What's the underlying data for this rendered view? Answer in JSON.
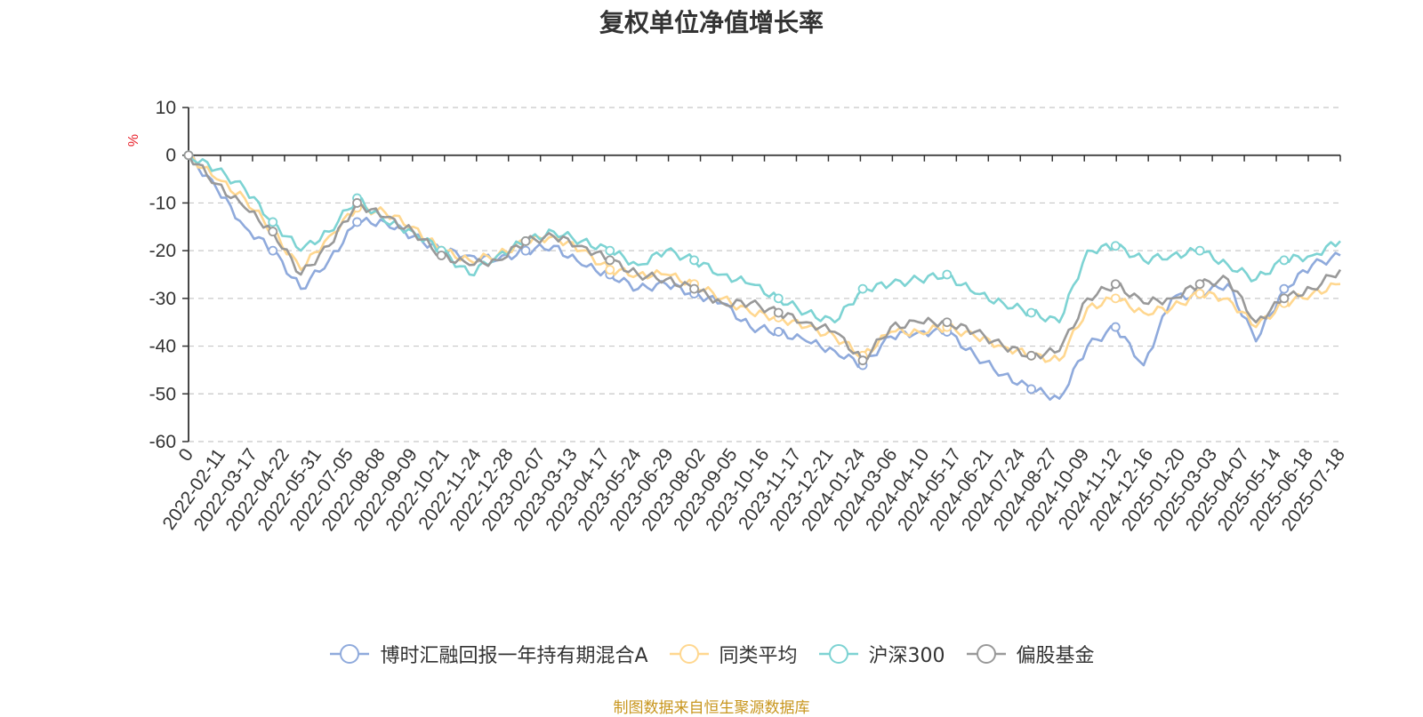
{
  "chart_data": {
    "type": "line",
    "title": "复权单位净值增长率",
    "ylabel": "%",
    "ylim": [
      -60,
      10
    ],
    "yticks": [
      10,
      0,
      -10,
      -20,
      -30,
      -40,
      -50,
      -60
    ],
    "grid": true,
    "legend_position": "bottom",
    "x_tick_labels": [
      "0",
      "2022-02-11",
      "2022-03-17",
      "2022-04-22",
      "2022-05-31",
      "2022-07-05",
      "2022-08-08",
      "2022-09-09",
      "2022-10-21",
      "2022-11-24",
      "2022-12-28",
      "2023-02-07",
      "2023-03-13",
      "2023-04-17",
      "2023-05-24",
      "2023-06-29",
      "2023-08-02",
      "2023-09-05",
      "2023-10-16",
      "2023-11-17",
      "2023-12-21",
      "2024-01-24",
      "2024-03-06",
      "2024-04-10",
      "2024-05-17",
      "2024-06-21",
      "2024-07-24",
      "2024-08-27",
      "2024-10-09",
      "2024-11-12",
      "2024-12-16",
      "2025-01-20",
      "2025-03-03",
      "2025-04-07",
      "2025-05-14",
      "2025-06-18",
      "2025-07-18"
    ],
    "series": [
      {
        "name": "博时汇融回报一年持有期混合A",
        "color": "#8faadc",
        "values": [
          0,
          -7,
          -15,
          -20,
          -28,
          -22,
          -14,
          -14,
          -17,
          -20,
          -21,
          -22,
          -20,
          -19,
          -23,
          -25,
          -28,
          -27,
          -29,
          -31,
          -36,
          -37,
          -39,
          -41,
          -44,
          -38,
          -37,
          -37,
          -42,
          -46,
          -49,
          -51,
          -40,
          -36,
          -44,
          -30,
          -29,
          -27,
          -39,
          -28,
          -23,
          -21
        ]
      },
      {
        "name": "同类平均",
        "color": "#ffd78f",
        "values": [
          0,
          -5,
          -9,
          -16,
          -24,
          -17,
          -11,
          -12,
          -15,
          -20,
          -22,
          -21,
          -18,
          -17,
          -20,
          -24,
          -25,
          -25,
          -27,
          -30,
          -33,
          -34,
          -36,
          -38,
          -42,
          -37,
          -37,
          -36,
          -38,
          -40,
          -42,
          -43,
          -32,
          -30,
          -33,
          -32,
          -29,
          -30,
          -36,
          -31,
          -29,
          -27
        ]
      },
      {
        "name": "沪深300",
        "color": "#7dd3d3",
        "values": [
          0,
          -3,
          -7,
          -14,
          -20,
          -16,
          -9,
          -14,
          -16,
          -20,
          -25,
          -21,
          -18,
          -16,
          -18,
          -20,
          -23,
          -20,
          -22,
          -25,
          -27,
          -30,
          -33,
          -35,
          -28,
          -27,
          -26,
          -25,
          -29,
          -31,
          -33,
          -35,
          -20,
          -19,
          -22,
          -21,
          -20,
          -23,
          -26,
          -22,
          -21,
          -18
        ]
      },
      {
        "name": "偏股基金",
        "color": "#999999",
        "values": [
          0,
          -6,
          -11,
          -16,
          -25,
          -19,
          -10,
          -13,
          -16,
          -21,
          -23,
          -22,
          -18,
          -17,
          -19,
          -22,
          -25,
          -26,
          -28,
          -31,
          -31,
          -33,
          -35,
          -37,
          -43,
          -36,
          -35,
          -35,
          -37,
          -40,
          -42,
          -41,
          -30,
          -27,
          -31,
          -30,
          -27,
          -26,
          -35,
          -30,
          -28,
          -24
        ]
      }
    ]
  },
  "source_note": "制图数据来自恒生聚源数据库"
}
